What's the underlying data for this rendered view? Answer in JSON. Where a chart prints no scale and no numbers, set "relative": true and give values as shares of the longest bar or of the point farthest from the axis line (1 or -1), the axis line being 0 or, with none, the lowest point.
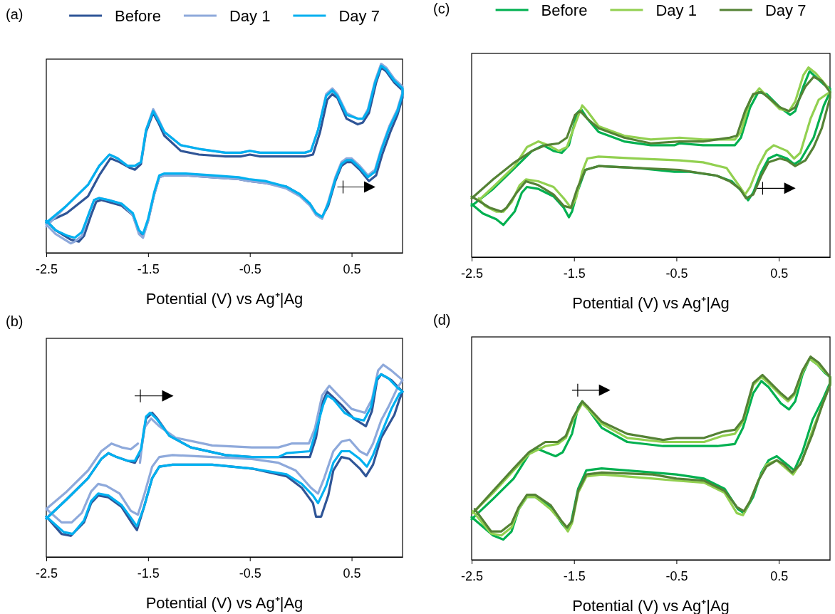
{
  "chart_data": [
    {
      "type": "line",
      "title": "(a)",
      "xlabel": "Potential (V) vs Ag⁺|Ag",
      "relative": true,
      "xlim": [
        -2.5,
        1.0
      ],
      "xticks": [
        -2.5,
        -1.5,
        -0.5,
        0.5
      ],
      "tick_labels": "x",
      "legend": "top",
      "line_style": "solid",
      "series": [
        {
          "name": "Before",
          "color": "#2f5597",
          "x": [
            -2.5,
            -2.3,
            -2.09,
            -1.98,
            -1.87,
            -1.78,
            -1.68,
            -1.63,
            -1.57,
            -1.52,
            -1.45,
            -1.4,
            -1.34,
            -1.18,
            -1.0,
            -0.74,
            -0.59,
            -0.5,
            -0.4,
            0.04,
            0.12,
            0.19,
            0.26,
            0.31,
            0.36,
            0.45,
            0.56,
            0.61,
            0.67,
            0.74,
            0.79,
            0.84,
            0.92,
            1.0,
            1.0,
            0.95,
            0.88,
            0.8,
            0.74,
            0.67,
            0.58,
            0.5,
            0.45,
            0.4,
            0.34,
            0.27,
            0.21,
            0.15,
            0.09,
            -0.01,
            -0.14,
            -0.35,
            -0.51,
            -0.61,
            -0.87,
            -1.13,
            -1.34,
            -1.39,
            -1.44,
            -1.5,
            -1.55,
            -1.59,
            -1.65,
            -1.76,
            -1.89,
            -1.96,
            -2.01,
            -2.06,
            -2.13,
            -2.18,
            -2.26,
            -2.41,
            -2.5
          ],
          "values": [
            0.16,
            0.21,
            0.3,
            0.41,
            0.5,
            0.48,
            0.45,
            0.44,
            0.47,
            0.64,
            0.74,
            0.69,
            0.62,
            0.54,
            0.52,
            0.51,
            0.51,
            0.52,
            0.51,
            0.51,
            0.52,
            0.64,
            0.81,
            0.84,
            0.82,
            0.71,
            0.68,
            0.69,
            0.74,
            0.9,
            0.98,
            0.96,
            0.9,
            0.86,
            0.82,
            0.73,
            0.64,
            0.52,
            0.41,
            0.38,
            0.44,
            0.48,
            0.48,
            0.46,
            0.38,
            0.25,
            0.19,
            0.21,
            0.26,
            0.31,
            0.35,
            0.37,
            0.38,
            0.39,
            0.4,
            0.41,
            0.41,
            0.4,
            0.31,
            0.17,
            0.09,
            0.11,
            0.2,
            0.25,
            0.27,
            0.28,
            0.27,
            0.2,
            0.09,
            0.06,
            0.07,
            0.12,
            0.17
          ]
        },
        {
          "name": "Day 1",
          "color": "#8ea9db",
          "x": [
            -2.5,
            -2.3,
            -2.09,
            -1.98,
            -1.88,
            -1.8,
            -1.7,
            -1.63,
            -1.57,
            -1.52,
            -1.45,
            -1.4,
            -1.34,
            -1.18,
            -1.0,
            -0.74,
            -0.59,
            -0.5,
            -0.4,
            0.04,
            0.1,
            0.17,
            0.25,
            0.31,
            0.36,
            0.45,
            0.56,
            0.61,
            0.66,
            0.73,
            0.79,
            0.84,
            0.92,
            1.0,
            1.0,
            0.95,
            0.87,
            0.79,
            0.73,
            0.66,
            0.58,
            0.5,
            0.45,
            0.4,
            0.34,
            0.27,
            0.21,
            0.15,
            0.09,
            -0.01,
            -0.14,
            -0.35,
            -0.51,
            -0.61,
            -0.87,
            -1.13,
            -1.34,
            -1.39,
            -1.44,
            -1.5,
            -1.55,
            -1.59,
            -1.65,
            -1.76,
            -1.89,
            -1.98,
            -2.03,
            -2.08,
            -2.15,
            -2.22,
            -2.26,
            -2.41,
            -2.5
          ],
          "values": [
            0.14,
            0.25,
            0.36,
            0.46,
            0.52,
            0.5,
            0.46,
            0.46,
            0.48,
            0.65,
            0.76,
            0.71,
            0.64,
            0.57,
            0.55,
            0.53,
            0.53,
            0.54,
            0.53,
            0.53,
            0.54,
            0.65,
            0.84,
            0.87,
            0.84,
            0.74,
            0.71,
            0.71,
            0.76,
            0.91,
            1.0,
            0.98,
            0.92,
            0.88,
            0.85,
            0.76,
            0.67,
            0.55,
            0.44,
            0.41,
            0.46,
            0.5,
            0.5,
            0.48,
            0.4,
            0.27,
            0.18,
            0.2,
            0.25,
            0.3,
            0.34,
            0.37,
            0.38,
            0.39,
            0.4,
            0.41,
            0.41,
            0.4,
            0.31,
            0.17,
            0.08,
            0.1,
            0.2,
            0.26,
            0.28,
            0.29,
            0.28,
            0.21,
            0.09,
            0.06,
            0.05,
            0.1,
            0.15
          ]
        },
        {
          "name": "Day 7",
          "color": "#00b0f0",
          "x": [
            -2.5,
            -2.3,
            -2.09,
            -1.98,
            -1.88,
            -1.8,
            -1.7,
            -1.63,
            -1.57,
            -1.52,
            -1.45,
            -1.4,
            -1.34,
            -1.18,
            -1.0,
            -0.74,
            -0.59,
            -0.5,
            -0.4,
            0.04,
            0.1,
            0.17,
            0.25,
            0.31,
            0.36,
            0.45,
            0.56,
            0.61,
            0.66,
            0.73,
            0.79,
            0.84,
            0.92,
            1.0,
            1.0,
            0.95,
            0.87,
            0.79,
            0.73,
            0.66,
            0.58,
            0.5,
            0.45,
            0.4,
            0.34,
            0.27,
            0.21,
            0.15,
            0.09,
            -0.01,
            -0.14,
            -0.35,
            -0.51,
            -0.61,
            -0.87,
            -1.13,
            -1.34,
            -1.39,
            -1.44,
            -1.5,
            -1.55,
            -1.59,
            -1.65,
            -1.76,
            -1.89,
            -1.98,
            -2.03,
            -2.08,
            -2.15,
            -2.22,
            -2.29,
            -2.41,
            -2.5
          ],
          "values": [
            0.16,
            0.25,
            0.36,
            0.46,
            0.52,
            0.5,
            0.46,
            0.46,
            0.48,
            0.65,
            0.75,
            0.7,
            0.64,
            0.57,
            0.55,
            0.53,
            0.53,
            0.54,
            0.53,
            0.53,
            0.54,
            0.65,
            0.83,
            0.86,
            0.83,
            0.73,
            0.71,
            0.71,
            0.75,
            0.9,
            0.99,
            0.97,
            0.91,
            0.87,
            0.84,
            0.75,
            0.66,
            0.54,
            0.43,
            0.4,
            0.45,
            0.49,
            0.49,
            0.47,
            0.39,
            0.26,
            0.19,
            0.21,
            0.26,
            0.31,
            0.35,
            0.38,
            0.39,
            0.4,
            0.41,
            0.42,
            0.42,
            0.41,
            0.32,
            0.18,
            0.1,
            0.12,
            0.21,
            0.26,
            0.28,
            0.29,
            0.28,
            0.21,
            0.11,
            0.08,
            0.09,
            0.12,
            0.17
          ]
        }
      ]
    },
    {
      "type": "line",
      "title": "(b)",
      "xlabel": "Potential (V) vs Ag⁺|Ag",
      "relative": true,
      "xlim": [
        -2.5,
        1.0
      ],
      "xticks": [
        -2.5,
        -1.5,
        -0.5,
        0.5
      ],
      "tick_labels": "x",
      "line_style": "solid",
      "series": [
        {
          "color": "#2f5597",
          "x": [
            -2.5,
            -2.3,
            -2.09,
            -1.96,
            -1.89,
            -1.81,
            -1.7,
            -1.63,
            -1.57,
            -1.52,
            -1.46,
            -1.41,
            -1.29,
            -1.08,
            -0.74,
            -0.48,
            -0.22,
            0.09,
            0.15,
            0.21,
            0.26,
            0.32,
            0.4,
            0.52,
            0.64,
            0.7,
            0.75,
            0.79,
            0.89,
            1.0,
            0.97,
            0.92,
            0.79,
            0.71,
            0.64,
            0.58,
            0.48,
            0.4,
            0.32,
            0.27,
            0.2,
            0.15,
            0.12,
            0.01,
            -0.14,
            -0.48,
            -0.87,
            -1.26,
            -1.39,
            -1.46,
            -1.54,
            -1.61,
            -1.65,
            -1.76,
            -1.89,
            -1.99,
            -2.06,
            -2.13,
            -2.26,
            -2.35,
            -2.5
          ],
          "values": [
            0.2,
            0.3,
            0.41,
            0.51,
            0.54,
            0.52,
            0.5,
            0.49,
            0.55,
            0.72,
            0.75,
            0.72,
            0.63,
            0.57,
            0.53,
            0.52,
            0.52,
            0.52,
            0.62,
            0.8,
            0.86,
            0.83,
            0.79,
            0.72,
            0.68,
            0.76,
            0.92,
            0.95,
            0.92,
            0.86,
            0.82,
            0.74,
            0.62,
            0.48,
            0.42,
            0.46,
            0.51,
            0.52,
            0.45,
            0.32,
            0.21,
            0.21,
            0.28,
            0.36,
            0.42,
            0.46,
            0.48,
            0.48,
            0.47,
            0.41,
            0.26,
            0.14,
            0.17,
            0.26,
            0.31,
            0.32,
            0.28,
            0.18,
            0.11,
            0.12,
            0.21
          ]
        },
        {
          "color": "#8ea9db",
          "x": [
            -1.58,
            -1.54,
            -1.47,
            -1.39,
            -1.23,
            -0.87,
            -0.48,
            -0.22,
            -0.09,
            0.08,
            0.14,
            0.21,
            0.28,
            0.37,
            0.5,
            0.63,
            0.7,
            0.76,
            0.81,
            0.89,
            1.0,
            0.95,
            0.87,
            0.79,
            0.71,
            0.65,
            0.58,
            0.48,
            0.4,
            0.32,
            0.23,
            0.17,
            0.1,
            -0.05,
            -0.22,
            -0.48,
            -0.87,
            -1.26,
            -1.39,
            -1.46,
            -1.54,
            -1.6,
            -1.67,
            -1.78,
            -1.91,
            -1.99,
            -2.06,
            -2.15,
            -2.25,
            -2.35,
            -2.5,
            -2.3,
            -2.09,
            -1.96,
            -1.86,
            -1.76,
            -1.67,
            -1.6
          ],
          "values": [
            0.49,
            0.67,
            0.72,
            0.68,
            0.62,
            0.58,
            0.57,
            0.57,
            0.59,
            0.59,
            0.67,
            0.84,
            0.89,
            0.84,
            0.77,
            0.75,
            0.82,
            0.97,
            1.0,
            0.97,
            0.92,
            0.88,
            0.79,
            0.71,
            0.59,
            0.53,
            0.55,
            0.61,
            0.6,
            0.55,
            0.41,
            0.33,
            0.36,
            0.45,
            0.49,
            0.51,
            0.52,
            0.53,
            0.52,
            0.47,
            0.32,
            0.22,
            0.24,
            0.33,
            0.37,
            0.38,
            0.34,
            0.23,
            0.18,
            0.18,
            0.25,
            0.34,
            0.45,
            0.55,
            0.59,
            0.57,
            0.56,
            0.59
          ]
        },
        {
          "color": "#00b0f0",
          "x": [
            -2.5,
            -2.3,
            -2.09,
            -1.96,
            -1.89,
            -1.81,
            -1.7,
            -1.63,
            -1.57,
            -1.52,
            -1.48,
            -1.42,
            -1.29,
            -1.08,
            -0.74,
            -0.48,
            -0.22,
            -0.14,
            0.09,
            0.14,
            0.22,
            0.26,
            0.32,
            0.43,
            0.53,
            0.62,
            0.69,
            0.75,
            0.79,
            0.86,
            0.95,
            1.0,
            0.97,
            0.89,
            0.79,
            0.71,
            0.65,
            0.58,
            0.48,
            0.4,
            0.32,
            0.25,
            0.17,
            0.12,
            0.01,
            -0.14,
            -0.48,
            -0.87,
            -1.26,
            -1.39,
            -1.46,
            -1.54,
            -1.61,
            -1.65,
            -1.76,
            -1.89,
            -1.99,
            -2.06,
            -2.13,
            -2.24,
            -2.33,
            -2.5
          ],
          "values": [
            0.2,
            0.3,
            0.41,
            0.51,
            0.54,
            0.52,
            0.5,
            0.5,
            0.56,
            0.73,
            0.75,
            0.72,
            0.63,
            0.57,
            0.53,
            0.52,
            0.52,
            0.54,
            0.55,
            0.64,
            0.79,
            0.84,
            0.82,
            0.75,
            0.72,
            0.71,
            0.78,
            0.93,
            0.95,
            0.93,
            0.88,
            0.86,
            0.85,
            0.77,
            0.64,
            0.53,
            0.47,
            0.51,
            0.55,
            0.55,
            0.49,
            0.37,
            0.28,
            0.32,
            0.38,
            0.43,
            0.46,
            0.48,
            0.48,
            0.47,
            0.41,
            0.26,
            0.16,
            0.19,
            0.27,
            0.32,
            0.33,
            0.29,
            0.19,
            0.12,
            0.13,
            0.21
          ]
        }
      ]
    },
    {
      "type": "line",
      "title": "(c)",
      "xlabel": "Potential (V) vs Ag⁺|Ag",
      "relative": true,
      "xlim": [
        -2.5,
        1.0
      ],
      "xticks": [
        -2.5,
        -1.5,
        -0.5,
        0.5
      ],
      "tick_labels": "x",
      "legend": "top",
      "line_style": "solid",
      "series": [
        {
          "name": "Before",
          "color": "#00b050",
          "x": [
            -2.5,
            -2.29,
            -2.08,
            -1.91,
            -1.8,
            -1.7,
            -1.62,
            -1.55,
            -1.47,
            -1.43,
            -1.37,
            -1.26,
            -1.01,
            -0.75,
            -0.52,
            -0.47,
            -0.24,
            0.07,
            0.13,
            0.22,
            0.3,
            0.38,
            0.51,
            0.61,
            0.66,
            0.74,
            0.8,
            0.86,
            0.94,
            1.0,
            1.0,
            0.94,
            0.84,
            0.71,
            0.65,
            0.58,
            0.48,
            0.4,
            0.33,
            0.25,
            0.2,
            0.15,
            0.04,
            -0.11,
            -0.37,
            -0.52,
            -0.88,
            -1.26,
            -1.39,
            -1.47,
            -1.52,
            -1.55,
            -1.6,
            -1.7,
            -1.85,
            -1.96,
            -2.01,
            -2.08,
            -2.19,
            -2.26,
            -2.39,
            -2.5
          ],
          "values": [
            0.27,
            0.36,
            0.47,
            0.56,
            0.59,
            0.56,
            0.55,
            0.59,
            0.76,
            0.78,
            0.73,
            0.66,
            0.61,
            0.59,
            0.59,
            0.6,
            0.59,
            0.59,
            0.63,
            0.79,
            0.87,
            0.86,
            0.79,
            0.75,
            0.77,
            0.9,
            0.98,
            0.95,
            0.91,
            0.89,
            0.87,
            0.8,
            0.63,
            0.51,
            0.49,
            0.52,
            0.54,
            0.52,
            0.45,
            0.34,
            0.3,
            0.34,
            0.4,
            0.43,
            0.45,
            0.45,
            0.47,
            0.48,
            0.46,
            0.34,
            0.24,
            0.21,
            0.26,
            0.32,
            0.36,
            0.37,
            0.34,
            0.24,
            0.17,
            0.2,
            0.23,
            0.28
          ]
        },
        {
          "name": "Day 1",
          "color": "#92d050",
          "x": [
            -2.43,
            -2.29,
            -2.08,
            -1.96,
            -1.85,
            -1.75,
            -1.65,
            -1.57,
            -1.49,
            -1.42,
            -1.37,
            -1.26,
            -1.01,
            -0.75,
            -0.47,
            -0.24,
            0.07,
            0.13,
            0.22,
            0.31,
            0.4,
            0.51,
            0.6,
            0.66,
            0.74,
            0.79,
            0.86,
            0.97,
            1.0,
            0.97,
            0.89,
            0.81,
            0.71,
            0.65,
            0.58,
            0.45,
            0.38,
            0.3,
            0.22,
            0.17,
            0.12,
            -0.01,
            -0.24,
            -0.47,
            -0.88,
            -1.26,
            -1.37,
            -1.42,
            -1.48,
            -1.53,
            -1.6,
            -1.7,
            -1.85,
            -1.97,
            -2.03,
            -2.11,
            -2.19,
            -2.26,
            -2.37,
            -2.43
          ],
          "values": [
            0.3,
            0.37,
            0.48,
            0.58,
            0.61,
            0.59,
            0.56,
            0.58,
            0.7,
            0.8,
            0.77,
            0.69,
            0.64,
            0.62,
            0.63,
            0.62,
            0.62,
            0.66,
            0.83,
            0.89,
            0.84,
            0.78,
            0.77,
            0.82,
            0.96,
            1.0,
            0.97,
            0.9,
            0.87,
            0.86,
            0.83,
            0.73,
            0.55,
            0.52,
            0.56,
            0.59,
            0.56,
            0.48,
            0.37,
            0.33,
            0.37,
            0.47,
            0.5,
            0.51,
            0.52,
            0.53,
            0.52,
            0.45,
            0.31,
            0.26,
            0.31,
            0.37,
            0.4,
            0.41,
            0.38,
            0.29,
            0.24,
            0.24,
            0.27,
            0.31
          ]
        },
        {
          "name": "Day 7",
          "color": "#548235",
          "x": [
            -2.5,
            -2.29,
            -2.08,
            -1.91,
            -1.78,
            -1.65,
            -1.57,
            -1.49,
            -1.44,
            -1.37,
            -1.26,
            -1.01,
            -0.75,
            -0.47,
            -0.24,
            0.02,
            0.09,
            0.17,
            0.25,
            0.33,
            0.4,
            0.51,
            0.6,
            0.66,
            0.76,
            0.84,
            0.92,
            1.0,
            1.0,
            0.92,
            0.84,
            0.76,
            0.66,
            0.58,
            0.51,
            0.4,
            0.33,
            0.25,
            0.18,
            0.12,
            0.02,
            -0.11,
            -0.47,
            -0.88,
            -1.26,
            -1.39,
            -1.47,
            -1.53,
            -1.6,
            -1.7,
            -1.85,
            -1.97,
            -2.06,
            -2.16,
            -2.21,
            -2.32,
            -2.5
          ],
          "values": [
            0.31,
            0.41,
            0.5,
            0.56,
            0.59,
            0.6,
            0.63,
            0.75,
            0.77,
            0.73,
            0.68,
            0.63,
            0.6,
            0.61,
            0.61,
            0.63,
            0.64,
            0.77,
            0.86,
            0.87,
            0.84,
            0.79,
            0.77,
            0.79,
            0.9,
            0.95,
            0.93,
            0.87,
            0.84,
            0.68,
            0.58,
            0.51,
            0.48,
            0.51,
            0.52,
            0.5,
            0.43,
            0.33,
            0.31,
            0.36,
            0.4,
            0.43,
            0.46,
            0.47,
            0.48,
            0.46,
            0.36,
            0.26,
            0.27,
            0.33,
            0.38,
            0.4,
            0.34,
            0.26,
            0.24,
            0.26,
            0.32
          ]
        }
      ]
    },
    {
      "type": "line",
      "title": "(d)",
      "xlabel": "Potential (V) vs Ag⁺|Ag",
      "relative": true,
      "xlim": [
        -2.5,
        1.0
      ],
      "xticks": [
        -2.5,
        -1.5,
        -0.5,
        0.5
      ],
      "tick_labels": "x",
      "line_style": "solid",
      "series": [
        {
          "color": "#00b050",
          "x": [
            -2.5,
            -2.29,
            -2.09,
            -1.94,
            -1.87,
            -1.78,
            -1.68,
            -1.61,
            -1.52,
            -1.46,
            -1.42,
            -1.36,
            -1.23,
            -0.98,
            -0.63,
            -0.5,
            -0.35,
            -0.1,
            0.07,
            0.15,
            0.25,
            0.33,
            0.4,
            0.52,
            0.6,
            0.66,
            0.73,
            0.8,
            0.88,
            0.95,
            1.0,
            1.0,
            0.93,
            0.83,
            0.73,
            0.65,
            0.58,
            0.48,
            0.4,
            0.33,
            0.25,
            0.16,
            0.1,
            -0.03,
            -0.23,
            -0.5,
            -0.73,
            -1.23,
            -1.38,
            -1.46,
            -1.53,
            -1.57,
            -1.62,
            -1.73,
            -1.88,
            -1.96,
            -2.04,
            -2.11,
            -2.19,
            -2.29,
            -2.5
          ],
          "values": [
            0.2,
            0.3,
            0.4,
            0.52,
            0.55,
            0.53,
            0.51,
            0.53,
            0.62,
            0.75,
            0.78,
            0.74,
            0.65,
            0.58,
            0.56,
            0.56,
            0.56,
            0.56,
            0.57,
            0.65,
            0.82,
            0.88,
            0.85,
            0.77,
            0.74,
            0.78,
            0.91,
            0.99,
            0.96,
            0.92,
            0.9,
            0.87,
            0.79,
            0.69,
            0.53,
            0.44,
            0.47,
            0.51,
            0.49,
            0.43,
            0.31,
            0.23,
            0.25,
            0.35,
            0.4,
            0.42,
            0.43,
            0.45,
            0.44,
            0.35,
            0.18,
            0.15,
            0.18,
            0.26,
            0.31,
            0.31,
            0.25,
            0.14,
            0.1,
            0.12,
            0.21
          ]
        },
        {
          "color": "#92d050",
          "x": [
            -2.49,
            -2.29,
            -2.09,
            -1.94,
            -1.78,
            -1.66,
            -1.58,
            -1.51,
            -1.42,
            -1.36,
            -1.23,
            -0.98,
            -0.63,
            -0.5,
            -0.23,
            -0.05,
            0.07,
            0.15,
            0.25,
            0.33,
            0.4,
            0.52,
            0.59,
            0.65,
            0.73,
            0.8,
            0.88,
            1.0,
            1.0,
            0.93,
            0.83,
            0.73,
            0.64,
            0.57,
            0.48,
            0.38,
            0.3,
            0.22,
            0.15,
            0.09,
            -0.03,
            -0.23,
            -0.5,
            -0.73,
            -1.23,
            -1.38,
            -1.46,
            -1.52,
            -1.56,
            -1.61,
            -1.73,
            -1.88,
            -1.96,
            -2.04,
            -2.11,
            -2.21,
            -2.31,
            -2.49
          ],
          "values": [
            0.23,
            0.33,
            0.44,
            0.52,
            0.56,
            0.57,
            0.6,
            0.69,
            0.77,
            0.74,
            0.67,
            0.6,
            0.58,
            0.58,
            0.58,
            0.61,
            0.62,
            0.68,
            0.86,
            0.9,
            0.87,
            0.81,
            0.78,
            0.81,
            0.92,
            0.99,
            0.96,
            0.9,
            0.86,
            0.77,
            0.64,
            0.49,
            0.42,
            0.45,
            0.49,
            0.47,
            0.39,
            0.29,
            0.22,
            0.23,
            0.33,
            0.38,
            0.39,
            0.4,
            0.42,
            0.41,
            0.33,
            0.18,
            0.14,
            0.18,
            0.25,
            0.31,
            0.31,
            0.25,
            0.16,
            0.12,
            0.13,
            0.24
          ]
        },
        {
          "color": "#548235",
          "x": [
            -2.47,
            -2.29,
            -2.09,
            -1.94,
            -1.78,
            -1.66,
            -1.58,
            -1.51,
            -1.42,
            -1.36,
            -1.23,
            -0.98,
            -0.63,
            -0.5,
            -0.23,
            -0.05,
            0.07,
            0.15,
            0.25,
            0.34,
            0.4,
            0.52,
            0.59,
            0.65,
            0.73,
            0.81,
            0.89,
            1.0,
            1.0,
            0.93,
            0.83,
            0.71,
            0.63,
            0.55,
            0.48,
            0.38,
            0.3,
            0.22,
            0.16,
            0.09,
            -0.03,
            -0.23,
            -0.5,
            -0.73,
            -1.23,
            -1.38,
            -1.46,
            -1.52,
            -1.57,
            -1.62,
            -1.73,
            -1.88,
            -1.96,
            -2.04,
            -2.11,
            -2.21,
            -2.31,
            -2.47
          ],
          "values": [
            0.24,
            0.34,
            0.45,
            0.53,
            0.58,
            0.58,
            0.61,
            0.7,
            0.78,
            0.75,
            0.68,
            0.62,
            0.59,
            0.6,
            0.6,
            0.63,
            0.64,
            0.69,
            0.87,
            0.91,
            0.88,
            0.82,
            0.79,
            0.82,
            0.93,
            1.0,
            0.97,
            0.9,
            0.86,
            0.77,
            0.62,
            0.47,
            0.43,
            0.47,
            0.49,
            0.46,
            0.39,
            0.29,
            0.24,
            0.26,
            0.34,
            0.39,
            0.4,
            0.42,
            0.43,
            0.42,
            0.34,
            0.19,
            0.16,
            0.19,
            0.27,
            0.32,
            0.32,
            0.26,
            0.18,
            0.14,
            0.14,
            0.25
          ]
        }
      ]
    }
  ]
}
